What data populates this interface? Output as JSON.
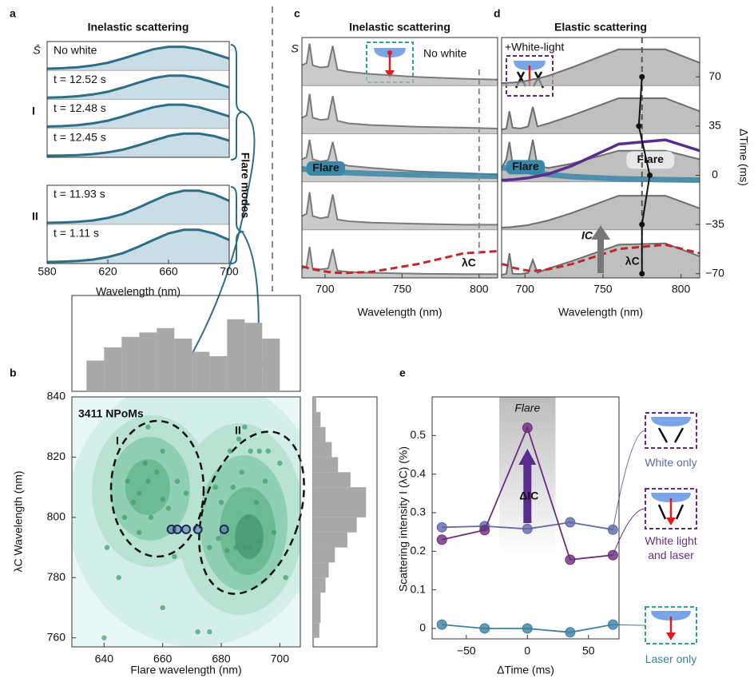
{
  "chart_data": [
    {
      "type": "strips",
      "panel_label": "a",
      "title": "Inelastic scattering",
      "ylabel": "S̄",
      "xlabel": "Wavelength (nm)",
      "xlim": [
        580,
        700
      ],
      "xticks": [
        580,
        620,
        660,
        700
      ],
      "groups": [
        "I",
        "II"
      ],
      "annotation": "Flare modes",
      "color": "#2d6e86",
      "fill": "#c9dde6",
      "x": [
        580,
        590,
        600,
        610,
        620,
        630,
        640,
        650,
        660,
        670,
        680,
        690,
        700
      ],
      "series": [
        {
          "name": "No white",
          "values": [
            0.01,
            0.03,
            0.07,
            0.15,
            0.27,
            0.46,
            0.67,
            0.87,
            0.98,
            0.98,
            0.87,
            0.67,
            0.46
          ]
        },
        {
          "name": "t = 12.52 s",
          "values": [
            0.01,
            0.03,
            0.07,
            0.15,
            0.27,
            0.46,
            0.67,
            0.87,
            0.98,
            0.98,
            0.87,
            0.67,
            0.46
          ]
        },
        {
          "name": "t = 12.48 s",
          "values": [
            0.01,
            0.03,
            0.07,
            0.15,
            0.27,
            0.46,
            0.67,
            0.87,
            0.98,
            0.98,
            0.87,
            0.67,
            0.46
          ]
        },
        {
          "name": "t = 12.45 s",
          "values": [
            0,
            0.01,
            0.03,
            0.07,
            0.15,
            0.27,
            0.46,
            0.67,
            0.87,
            0.98,
            0.98,
            0.87,
            0.67
          ]
        },
        {
          "name": "t = 11.93 s",
          "values": [
            0,
            0.01,
            0.03,
            0.07,
            0.15,
            0.27,
            0.46,
            0.67,
            0.87,
            0.98,
            0.98,
            0.87,
            0.67
          ]
        },
        {
          "name": "t = 1.11 s",
          "values": [
            0,
            0.01,
            0.03,
            0.07,
            0.15,
            0.27,
            0.46,
            0.67,
            0.87,
            0.98,
            0.98,
            0.87,
            0.67
          ]
        }
      ]
    },
    {
      "type": "strips",
      "panel_label": "c",
      "title": "Inelastic scattering",
      "title_color": "#2aa58a",
      "ylabel": "S",
      "xlabel": "Wavelength (nm)",
      "xlim": [
        685,
        812
      ],
      "xticks": [
        700,
        750,
        800
      ],
      "color": "#7a7a7a",
      "fill": "#b8b8b8",
      "inset_label": "No white",
      "marker_x": 800,
      "marker_label": "λC",
      "x": [
        685,
        688,
        690,
        692,
        697,
        702,
        705,
        708,
        715,
        730,
        760,
        790,
        812
      ],
      "series": [
        {
          "values": [
            0.45,
            0.5,
            0.95,
            0.45,
            0.4,
            0.42,
            0.9,
            0.35,
            0.3,
            0.25,
            0.18,
            0.14,
            0.12
          ]
        },
        {
          "values": [
            0.35,
            0.4,
            0.9,
            0.35,
            0.3,
            0.32,
            0.85,
            0.28,
            0.22,
            0.18,
            0.14,
            0.12,
            0.1
          ]
        },
        {
          "values": [
            0.5,
            0.55,
            0.95,
            0.5,
            0.45,
            0.48,
            0.9,
            0.42,
            0.35,
            0.3,
            0.22,
            0.18,
            0.15
          ]
        },
        {
          "values": [
            0.3,
            0.35,
            0.85,
            0.3,
            0.25,
            0.28,
            0.8,
            0.22,
            0.18,
            0.15,
            0.12,
            0.1,
            0.1
          ]
        },
        {
          "values": [
            0.2,
            0.25,
            0.7,
            0.2,
            0.18,
            0.2,
            0.65,
            0.15,
            0.12,
            0.1,
            0.08,
            0.07,
            0.07
          ]
        }
      ],
      "flare": {
        "name": "Flare",
        "color": "#3a87a8",
        "values": [
          0.28,
          0.27,
          0.26,
          0.25,
          0.24,
          0.22,
          0.21,
          0.2,
          0.19,
          0.17,
          0.14,
          0.12,
          0.11
        ]
      },
      "fit": {
        "color": "#c0282d",
        "values": [
          0.25,
          0.22,
          0.2,
          0.18,
          0.15,
          0.12,
          0.11,
          0.1,
          0.1,
          0.12,
          0.3,
          0.55,
          0.6
        ]
      }
    },
    {
      "type": "strips",
      "panel_label": "d",
      "title": "Elastic scattering",
      "title_color": "#5b2c83",
      "xlabel": "Wavelength (nm)",
      "y2label": "ΔTime (ms)",
      "xlim": [
        685,
        812
      ],
      "xticks": [
        700,
        750,
        800
      ],
      "y2lim": [
        -73,
        98
      ],
      "y2ticks": [
        70,
        35,
        0,
        {
          "value": -35,
          "label": "−35"
        },
        {
          "value": -70,
          "label": "−70"
        }
      ],
      "color": "#6e6e6e",
      "fill": "#a9a9a9",
      "inset_label": "+White-light",
      "marker_x": 775,
      "marker_label": "λC",
      "arrow_label": "IC",
      "x": [
        685,
        688,
        690,
        692,
        697,
        702,
        705,
        708,
        715,
        730,
        760,
        790,
        812
      ],
      "series": [
        {
          "values": [
            0.04,
            0.04,
            0.05,
            0.05,
            0.07,
            0.1,
            0.13,
            0.14,
            0.21,
            0.4,
            0.82,
            0.82,
            0.51
          ]
        },
        {
          "values": [
            0.08,
            0.1,
            0.5,
            0.12,
            0.1,
            0.15,
            0.6,
            0.15,
            0.22,
            0.4,
            0.8,
            0.8,
            0.5
          ]
        },
        {
          "values": [
            0.3,
            0.5,
            0.9,
            0.4,
            0.35,
            0.4,
            0.95,
            0.35,
            0.3,
            0.4,
            0.7,
            0.7,
            0.5
          ]
        },
        {
          "values": [
            0.03,
            0.04,
            0.04,
            0.05,
            0.07,
            0.09,
            0.12,
            0.14,
            0.2,
            0.37,
            0.77,
            0.77,
            0.48
          ]
        },
        {
          "values": [
            0.05,
            0.08,
            0.55,
            0.08,
            0.07,
            0.1,
            0.4,
            0.1,
            0.2,
            0.37,
            0.75,
            0.78,
            0.48
          ]
        }
      ],
      "flare": {
        "name": "Flare",
        "color": "#3a87a8",
        "values": [
          0.3,
          0.3,
          0.28,
          0.27,
          0.25,
          0.22,
          0.2,
          0.18,
          0.15,
          0.1,
          0.05,
          0.03,
          0.02
        ]
      },
      "flare_fit": {
        "name": "Flare",
        "color": "#5a2d8c",
        "values": [
          0.02,
          0.02,
          0.03,
          0.03,
          0.05,
          0.07,
          0.09,
          0.11,
          0.16,
          0.35,
          0.85,
          0.95,
          0.7
        ]
      },
      "fit": {
        "color": "#c0282d",
        "values": [
          0.3,
          0.28,
          0.25,
          0.22,
          0.18,
          0.15,
          0.14,
          0.15,
          0.18,
          0.3,
          0.65,
          0.75,
          0.55
        ]
      },
      "peaks": {
        "time": [
          70,
          35,
          0,
          -35,
          -70
        ],
        "wavelength": [
          775,
          773,
          780,
          775,
          775
        ]
      }
    },
    {
      "type": "scatter",
      "panel_label": "b",
      "annotation": "3411 NPoMs",
      "groups": [
        "I",
        "II"
      ],
      "xlabel": "Flare wavelength (nm)",
      "ylabel": "λC Wavelength (nm)",
      "xlim": [
        629,
        707
      ],
      "ylim": [
        757,
        840
      ],
      "xticks": [
        640,
        660,
        680,
        700
      ],
      "yticks": [
        760,
        780,
        800,
        820,
        840
      ],
      "color": "#3f9a6a",
      "x": [
        648,
        650,
        652,
        655,
        656,
        658,
        660,
        662,
        665,
        647,
        652,
        668,
        654,
        660,
        676,
        679,
        682,
        685,
        688,
        690,
        693,
        680,
        684,
        687,
        690,
        693,
        696,
        683,
        686,
        689,
        692,
        678,
        695,
        698,
        641,
        645,
        655,
        688,
        700,
        672,
        676,
        660,
        664,
        702,
        640
      ],
      "y": [
        812,
        805,
        808,
        812,
        800,
        815,
        806,
        803,
        812,
        800,
        795,
        808,
        818,
        822,
        790,
        793,
        789,
        790,
        790,
        790,
        792,
        805,
        810,
        815,
        822,
        822,
        822,
        822,
        826,
        800,
        805,
        810,
        812,
        795,
        790,
        780,
        830,
        830,
        818,
        762,
        762,
        770,
        787,
        780,
        760
      ],
      "highlight": {
        "color": "#4f6fa8",
        "x": [
          663,
          665,
          668,
          672,
          681
        ],
        "y": [
          796,
          796,
          796,
          796,
          796
        ]
      },
      "hist_color": "#a8a8a8",
      "top_hist": {
        "bins": [
          634,
          640,
          646,
          652,
          658,
          664,
          670,
          676,
          682,
          688,
          694,
          700
        ],
        "counts": [
          0.35,
          0.5,
          0.62,
          0.67,
          0.72,
          0.6,
          0.45,
          0.4,
          0.82,
          0.78,
          0.6
        ]
      },
      "right_hist": {
        "bins": [
          760,
          765,
          770,
          775,
          780,
          785,
          790,
          795,
          800,
          805,
          810,
          815,
          820,
          825,
          830,
          835,
          840
        ],
        "counts": [
          0.1,
          0.12,
          0.12,
          0.2,
          0.25,
          0.35,
          0.55,
          0.7,
          0.85,
          0.85,
          0.6,
          0.4,
          0.3,
          0.2,
          0.12,
          0.05
        ]
      }
    },
    {
      "type": "line",
      "panel_label": "e",
      "xlabel": "ΔTime (ms)",
      "ylabel": "Scattering intensity I (λC) (%)",
      "xlim": [
        -78,
        75
      ],
      "xticks": [
        {
          "value": -50,
          "label": "−50"
        },
        0,
        50
      ],
      "ylim": [
        -0.027,
        0.6
      ],
      "yticks": [
        0,
        0.1,
        0.2,
        0.3,
        0.4,
        0.5
      ],
      "band": [
        -23,
        23
      ],
      "band_label": "Flare",
      "arrow_label": "ΔIC",
      "x": [
        -70,
        -35,
        0,
        35,
        70
      ],
      "series": [
        {
          "name": "White only",
          "color": "#5f6aa6",
          "values": [
            0.262,
            0.265,
            0.258,
            0.275,
            0.256
          ]
        },
        {
          "name": "White light and laser",
          "color": "#6b2d7b",
          "values": [
            0.23,
            0.255,
            0.52,
            0.178,
            0.19
          ]
        },
        {
          "name": "Laser only",
          "color": "#3b7fa2",
          "values": [
            0.01,
            0,
            0,
            -0.01,
            0.01
          ]
        }
      ]
    }
  ]
}
